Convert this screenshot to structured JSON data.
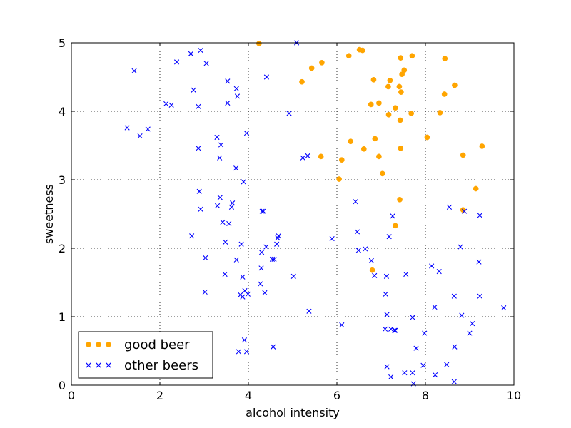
{
  "chart_data": {
    "type": "scatter",
    "xlabel": "alcohol intensity",
    "ylabel": "sweetness",
    "xlim": [
      0,
      10
    ],
    "ylim": [
      0,
      5
    ],
    "x_ticks": [
      0,
      2,
      4,
      6,
      8,
      10
    ],
    "y_ticks": [
      0,
      1,
      2,
      3,
      4,
      5
    ],
    "grid": "dotted",
    "legend_position": "lower-left",
    "series": [
      {
        "name": "good beer",
        "marker": "circle",
        "color": "#ffa500",
        "points": [
          [
            4.24,
            4.99
          ],
          [
            6.51,
            4.9
          ],
          [
            6.58,
            4.89
          ],
          [
            6.27,
            4.81
          ],
          [
            7.44,
            4.78
          ],
          [
            7.7,
            4.81
          ],
          [
            8.44,
            4.77
          ],
          [
            5.66,
            4.71
          ],
          [
            5.43,
            4.63
          ],
          [
            7.52,
            4.6
          ],
          [
            7.47,
            4.54
          ],
          [
            6.83,
            4.46
          ],
          [
            7.2,
            4.45
          ],
          [
            5.21,
            4.43
          ],
          [
            7.16,
            4.36
          ],
          [
            7.41,
            4.36
          ],
          [
            8.66,
            4.38
          ],
          [
            7.45,
            4.28
          ],
          [
            8.43,
            4.25
          ],
          [
            6.95,
            4.12
          ],
          [
            6.77,
            4.1
          ],
          [
            7.32,
            4.05
          ],
          [
            7.17,
            3.95
          ],
          [
            7.68,
            3.97
          ],
          [
            8.33,
            3.98
          ],
          [
            7.43,
            3.87
          ],
          [
            8.04,
            3.62
          ],
          [
            6.86,
            3.6
          ],
          [
            6.31,
            3.56
          ],
          [
            6.61,
            3.45
          ],
          [
            7.44,
            3.46
          ],
          [
            9.28,
            3.49
          ],
          [
            5.64,
            3.34
          ],
          [
            6.95,
            3.34
          ],
          [
            8.85,
            3.36
          ],
          [
            6.11,
            3.29
          ],
          [
            7.03,
            3.09
          ],
          [
            6.05,
            3.01
          ],
          [
            9.14,
            2.87
          ],
          [
            7.42,
            2.71
          ],
          [
            8.85,
            2.56
          ],
          [
            7.32,
            2.33
          ],
          [
            6.8,
            1.68
          ]
        ]
      },
      {
        "name": "other beers",
        "marker": "x",
        "color": "#0000ff",
        "points": [
          [
            2.92,
            4.89
          ],
          [
            2.7,
            4.84
          ],
          [
            2.38,
            4.72
          ],
          [
            3.05,
            4.7
          ],
          [
            1.42,
            4.59
          ],
          [
            4.41,
            4.5
          ],
          [
            3.53,
            4.44
          ],
          [
            3.73,
            4.33
          ],
          [
            2.76,
            4.31
          ],
          [
            3.75,
            4.22
          ],
          [
            3.53,
            4.12
          ],
          [
            2.14,
            4.11
          ],
          [
            2.26,
            4.09
          ],
          [
            2.87,
            4.07
          ],
          [
            4.92,
            3.97
          ],
          [
            1.26,
            3.76
          ],
          [
            1.73,
            3.74
          ],
          [
            3.96,
            3.68
          ],
          [
            1.55,
            3.64
          ],
          [
            3.29,
            3.62
          ],
          [
            3.38,
            3.51
          ],
          [
            2.87,
            3.46
          ],
          [
            5.34,
            3.35
          ],
          [
            5.23,
            3.32
          ],
          [
            3.35,
            3.32
          ],
          [
            3.72,
            3.17
          ],
          [
            3.89,
            2.97
          ],
          [
            2.89,
            2.83
          ],
          [
            3.36,
            2.74
          ],
          [
            6.42,
            2.68
          ],
          [
            3.64,
            2.66
          ],
          [
            3.3,
            2.62
          ],
          [
            3.62,
            2.6
          ],
          [
            8.54,
            2.6
          ],
          [
            2.92,
            2.57
          ],
          [
            4.31,
            2.54
          ],
          [
            4.34,
            2.54
          ],
          [
            8.88,
            2.54
          ],
          [
            9.23,
            2.48
          ],
          [
            7.26,
            2.47
          ],
          [
            3.42,
            2.38
          ],
          [
            3.56,
            2.36
          ],
          [
            6.46,
            2.24
          ],
          [
            2.72,
            2.18
          ],
          [
            7.18,
            2.17
          ],
          [
            4.68,
            2.18
          ],
          [
            4.66,
            2.15
          ],
          [
            5.89,
            2.14
          ],
          [
            3.48,
            2.09
          ],
          [
            4.64,
            2.06
          ],
          [
            3.84,
            2.06
          ],
          [
            8.79,
            2.02
          ],
          [
            4.4,
            2.02
          ],
          [
            6.49,
            1.97
          ],
          [
            6.64,
            1.99
          ],
          [
            4.3,
            1.94
          ],
          [
            3.03,
            1.86
          ],
          [
            4.54,
            1.84
          ],
          [
            4.58,
            1.84
          ],
          [
            3.73,
            1.83
          ],
          [
            6.78,
            1.82
          ],
          [
            9.21,
            1.8
          ],
          [
            8.14,
            1.74
          ],
          [
            4.29,
            1.71
          ],
          [
            8.31,
            1.66
          ],
          [
            7.56,
            1.62
          ],
          [
            3.47,
            1.62
          ],
          [
            6.85,
            1.6
          ],
          [
            5.02,
            1.59
          ],
          [
            7.12,
            1.59
          ],
          [
            3.87,
            1.58
          ],
          [
            4.27,
            1.48
          ],
          [
            3.92,
            1.38
          ],
          [
            3.02,
            1.36
          ],
          [
            4.37,
            1.35
          ],
          [
            3.99,
            1.33
          ],
          [
            3.82,
            1.32
          ],
          [
            7.1,
            1.33
          ],
          [
            3.87,
            1.29
          ],
          [
            8.65,
            1.3
          ],
          [
            9.23,
            1.3
          ],
          [
            9.77,
            1.13
          ],
          [
            8.21,
            1.14
          ],
          [
            5.37,
            1.08
          ],
          [
            7.13,
            1.03
          ],
          [
            8.82,
            1.02
          ],
          [
            7.71,
            0.99
          ],
          [
            9.06,
            0.9
          ],
          [
            6.11,
            0.88
          ],
          [
            7.09,
            0.82
          ],
          [
            7.3,
            0.8
          ],
          [
            7.32,
            0.8
          ],
          [
            7.22,
            0.82
          ],
          [
            7.98,
            0.76
          ],
          [
            9.0,
            0.76
          ],
          [
            3.91,
            0.66
          ],
          [
            4.56,
            0.56
          ],
          [
            8.66,
            0.56
          ],
          [
            7.79,
            0.54
          ],
          [
            3.78,
            0.49
          ],
          [
            3.96,
            0.49
          ],
          [
            8.48,
            0.3
          ],
          [
            7.13,
            0.27
          ],
          [
            7.95,
            0.29
          ],
          [
            7.53,
            0.18
          ],
          [
            7.71,
            0.18
          ],
          [
            8.22,
            0.15
          ],
          [
            7.22,
            0.12
          ],
          [
            8.65,
            0.05
          ],
          [
            7.73,
            0.02
          ],
          [
            5.09,
            5.0
          ]
        ]
      }
    ]
  }
}
